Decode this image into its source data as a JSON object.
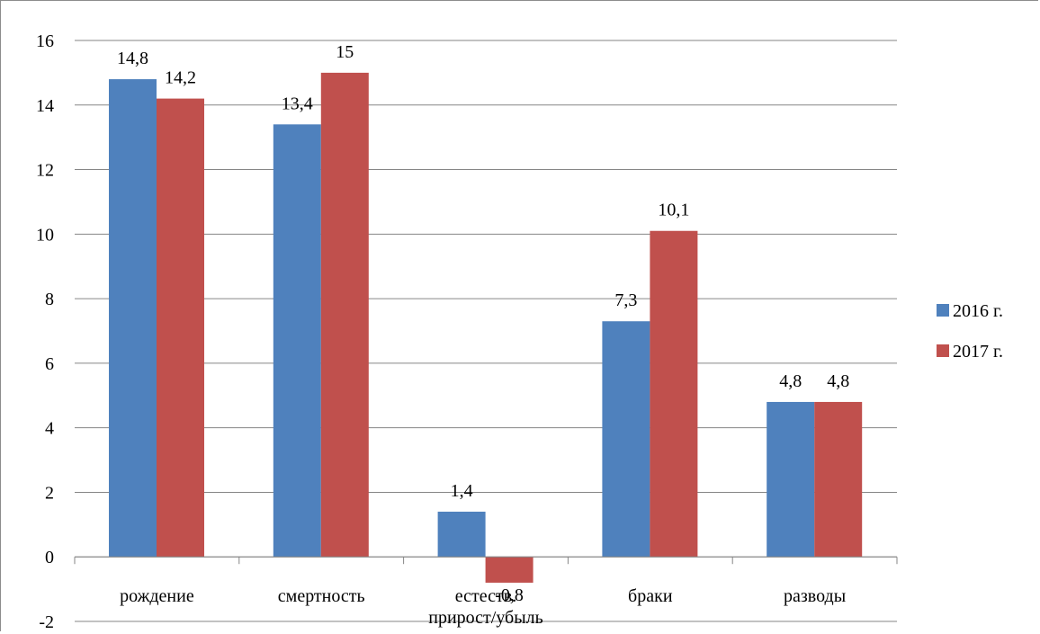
{
  "chart_data": {
    "type": "bar",
    "categories": [
      "рождение",
      "смертность",
      "естеств. прирост/убыль",
      "браки",
      "разводы"
    ],
    "category_lines": [
      [
        "рождение"
      ],
      [
        "смертность"
      ],
      [
        "естеств.",
        "прирост/убыль"
      ],
      [
        "браки"
      ],
      [
        "разводы"
      ]
    ],
    "series": [
      {
        "name": "2016 г.",
        "color": "#4f81bd",
        "values": [
          14.8,
          13.4,
          1.4,
          7.3,
          4.8
        ],
        "labels": [
          "14,8",
          "13,4",
          "1,4",
          "7,3",
          "4,8"
        ]
      },
      {
        "name": "2017 г.",
        "color": "#c0504d",
        "values": [
          14.2,
          15,
          -0.8,
          10.1,
          4.8
        ],
        "labels": [
          "14,2",
          "15",
          "-0,8",
          "10,1",
          "4,8"
        ]
      }
    ],
    "ylim": [
      -2,
      16
    ],
    "yticks": [
      -2,
      0,
      2,
      4,
      6,
      8,
      10,
      12,
      14,
      16
    ],
    "grid": true,
    "legend": "right",
    "title": "",
    "xlabel": "",
    "ylabel": ""
  }
}
